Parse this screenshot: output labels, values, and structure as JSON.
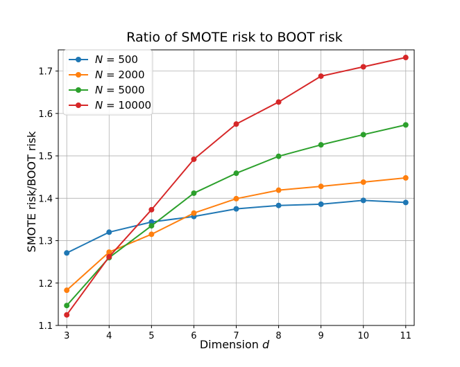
{
  "chart_data": {
    "type": "line",
    "title": "Ratio of SMOTE risk to BOOT risk",
    "xlabel": "Dimension d",
    "xlabel_main": "Dimension",
    "xlabel_var": "d",
    "ylabel": "SMOTE risk/BOOT risk",
    "x": [
      3,
      4,
      5,
      6,
      7,
      8,
      9,
      10,
      11
    ],
    "xlim": [
      2.8,
      11.2
    ],
    "ylim": [
      1.1,
      1.75
    ],
    "xticks": [
      "3",
      "4",
      "5",
      "6",
      "7",
      "8",
      "9",
      "10",
      "11"
    ],
    "yticks": [
      "1.1",
      "1.2",
      "1.3",
      "1.4",
      "1.5",
      "1.6",
      "1.7"
    ],
    "grid": true,
    "legend_position": "top-left",
    "series": [
      {
        "name": "N = 500",
        "var": "N",
        "eq": " = 500",
        "color": "#1f77b4",
        "values": [
          1.271,
          1.32,
          1.344,
          1.357,
          1.375,
          1.383,
          1.386,
          1.395,
          1.39
        ]
      },
      {
        "name": "N = 2000",
        "var": "N",
        "eq": " = 2000",
        "color": "#ff7f0e",
        "values": [
          1.183,
          1.273,
          1.315,
          1.365,
          1.399,
          1.419,
          1.428,
          1.438,
          1.448
        ]
      },
      {
        "name": "N = 5000",
        "var": "N",
        "eq": " = 5000",
        "color": "#2ca02c",
        "values": [
          1.147,
          1.26,
          1.335,
          1.412,
          1.459,
          1.499,
          1.526,
          1.55,
          1.573
        ]
      },
      {
        "name": "N = 10000",
        "var": "N",
        "eq": " = 10000",
        "color": "#d62728",
        "values": [
          1.125,
          1.262,
          1.373,
          1.492,
          1.575,
          1.627,
          1.688,
          1.71,
          1.732
        ]
      }
    ]
  }
}
